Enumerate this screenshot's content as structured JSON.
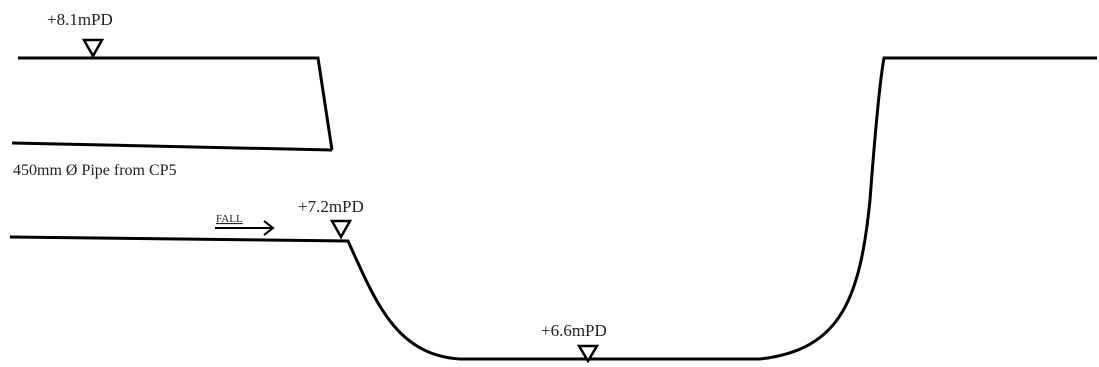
{
  "labels": {
    "level_top": "+8.1mPD",
    "pipe_caption": "450mm Ø Pipe from CP5",
    "fall": "FALL",
    "level_mid": "+7.2mPD",
    "level_bottom": "+6.6mPD"
  },
  "colors": {
    "line": "#000000",
    "text": "#222222",
    "background": "#ffffff"
  }
}
